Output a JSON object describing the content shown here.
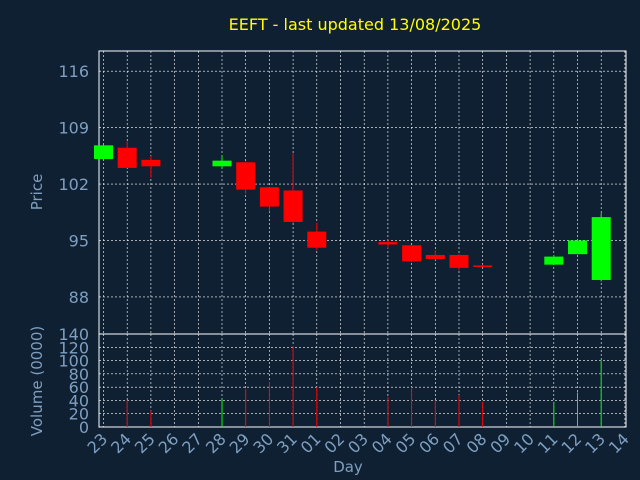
{
  "chart_data": [
    {
      "type": "candlestick",
      "title": "EEFT - last updated 13/08/2025",
      "ylabel": "Price",
      "xlabel": "",
      "ylim": [
        83.4,
        118.5
      ],
      "yticks": [
        88,
        95,
        102,
        109,
        116
      ],
      "categories": [
        "23",
        "24",
        "25",
        "26",
        "27",
        "28",
        "29",
        "30",
        "31",
        "01",
        "02",
        "03",
        "04",
        "05",
        "06",
        "07",
        "08",
        "09",
        "10",
        "11",
        "12",
        "13",
        "14"
      ],
      "candles": [
        {
          "x": "23",
          "open": 105.1,
          "close": 106.8,
          "high": 106.9,
          "low": 105.1
        },
        {
          "x": "24",
          "open": 106.5,
          "close": 104.0,
          "high": 107.3,
          "low": 104.0
        },
        {
          "x": "25",
          "open": 105.0,
          "close": 104.2,
          "high": 105.5,
          "low": 102.8
        },
        {
          "x": "28",
          "open": 104.2,
          "close": 104.9,
          "high": 105.6,
          "low": 103.9
        },
        {
          "x": "29",
          "open": 104.7,
          "close": 101.3,
          "high": 104.8,
          "low": 100.8
        },
        {
          "x": "30",
          "open": 101.6,
          "close": 99.2,
          "high": 101.6,
          "low": 98.6
        },
        {
          "x": "31",
          "open": 101.2,
          "close": 97.3,
          "high": 105.8,
          "low": 97.2
        },
        {
          "x": "01",
          "open": 96.1,
          "close": 94.1,
          "high": 97.2,
          "low": 93.8
        },
        {
          "x": "04",
          "open": 94.8,
          "close": 94.5,
          "high": 95.1,
          "low": 94.0
        },
        {
          "x": "05",
          "open": 94.4,
          "close": 92.4,
          "high": 94.4,
          "low": 92.3
        },
        {
          "x": "06",
          "open": 93.2,
          "close": 92.7,
          "high": 93.8,
          "low": 92.6
        },
        {
          "x": "07",
          "open": 93.2,
          "close": 91.6,
          "high": 93.3,
          "low": 91.3
        },
        {
          "x": "08",
          "open": 91.9,
          "close": 91.8,
          "high": 92.0,
          "low": 91.7
        },
        {
          "x": "11",
          "open": 92.0,
          "close": 93.0,
          "high": 93.2,
          "low": 92.0
        },
        {
          "x": "12",
          "open": 93.3,
          "close": 95.0,
          "high": 95.0,
          "low": 93.3
        },
        {
          "x": "13",
          "open": 90.1,
          "close": 97.9,
          "high": 98.4,
          "low": 89.9
        }
      ]
    },
    {
      "type": "bar",
      "ylabel": "Volume (0000)",
      "xlabel": "Day",
      "ylim": [
        0,
        140
      ],
      "yticks": [
        0,
        20,
        40,
        60,
        80,
        100,
        120,
        140
      ],
      "categories": [
        "23",
        "24",
        "25",
        "26",
        "27",
        "28",
        "29",
        "30",
        "31",
        "01",
        "02",
        "03",
        "04",
        "05",
        "06",
        "07",
        "08",
        "09",
        "10",
        "11",
        "12",
        "13",
        "14"
      ],
      "bars": [
        {
          "x": "24",
          "value": 40,
          "dir": "down"
        },
        {
          "x": "25",
          "value": 25,
          "dir": "down"
        },
        {
          "x": "28",
          "value": 42,
          "dir": "up"
        },
        {
          "x": "29",
          "value": 57,
          "dir": "down"
        },
        {
          "x": "30",
          "value": 68,
          "dir": "down"
        },
        {
          "x": "31",
          "value": 122,
          "dir": "down"
        },
        {
          "x": "01",
          "value": 60,
          "dir": "down"
        },
        {
          "x": "04",
          "value": 45,
          "dir": "down"
        },
        {
          "x": "05",
          "value": 60,
          "dir": "down"
        },
        {
          "x": "06",
          "value": 40,
          "dir": "down"
        },
        {
          "x": "07",
          "value": 48,
          "dir": "down"
        },
        {
          "x": "08",
          "value": 38,
          "dir": "down"
        },
        {
          "x": "11",
          "value": 38,
          "dir": "up"
        },
        {
          "x": "12",
          "value": 52,
          "dir": "up"
        },
        {
          "x": "13",
          "value": 100,
          "dir": "up"
        }
      ]
    }
  ],
  "colors": {
    "background": "#0f2033",
    "text": "#7f9fc0",
    "title": "#ffff00",
    "grid": "#ffffff",
    "up": "#00ff00",
    "down": "#ff0000"
  }
}
